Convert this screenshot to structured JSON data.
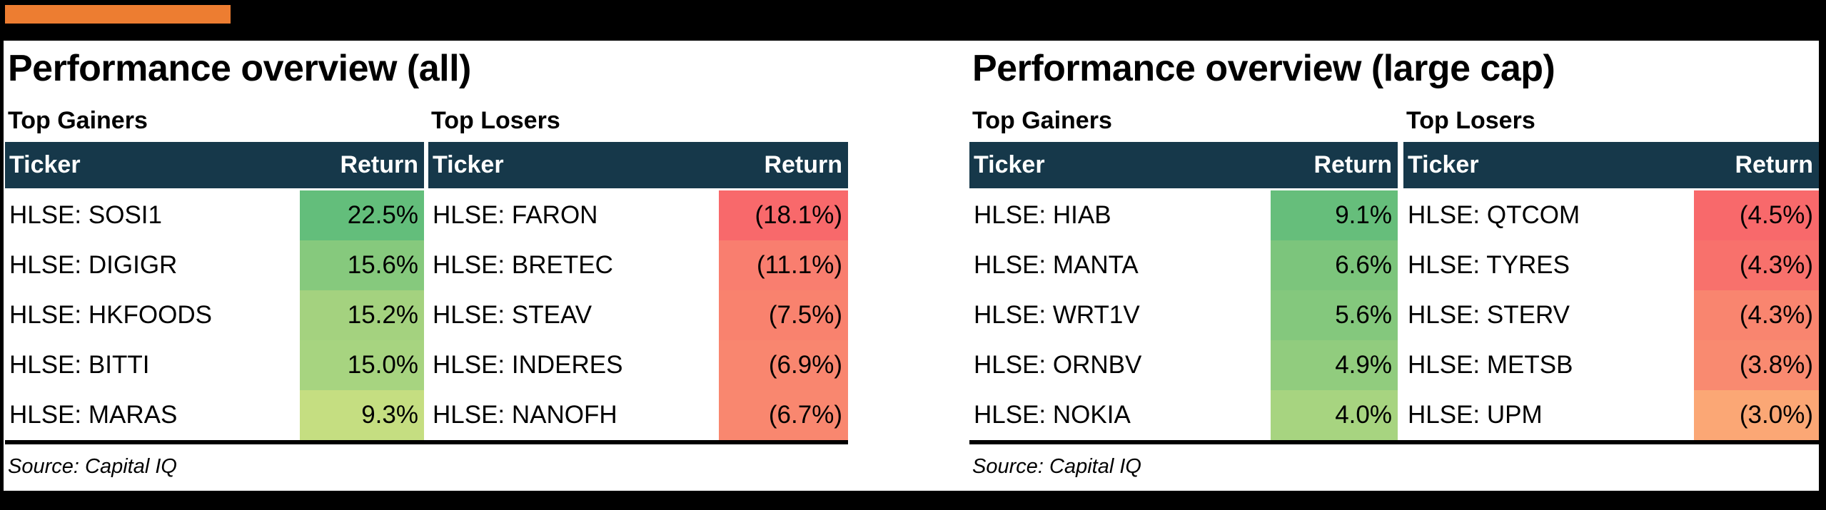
{
  "page": {
    "background": "#000000",
    "accent_bar_color": "#ED7D31",
    "header_bg": "#16384A",
    "header_text_color": "#FFFFFF"
  },
  "panels": [
    {
      "title": "Performance overview (all)",
      "gainers_label": "Top Gainers",
      "losers_label": "Top Losers",
      "ticker_header": "Ticker",
      "return_header": "Return",
      "source": "Source: Capital IQ",
      "gainers": [
        {
          "ticker": "HLSE: SOSI1",
          "return": "22.5%",
          "cell_color": "#63BE7B"
        },
        {
          "ticker": "HLSE: DIGIGR",
          "return": "15.6%",
          "cell_color": "#86C97D"
        },
        {
          "ticker": "HLSE: HKFOODS",
          "return": "15.2%",
          "cell_color": "#A4D27F"
        },
        {
          "ticker": "HLSE: BITTI",
          "return": "15.0%",
          "cell_color": "#A7D480"
        },
        {
          "ticker": "HLSE: MARAS",
          "return": "9.3%",
          "cell_color": "#C5DE81"
        }
      ],
      "losers": [
        {
          "ticker": "HLSE: FARON",
          "return": "(18.1%)",
          "cell_color": "#F8696B"
        },
        {
          "ticker": "HLSE: BRETEC",
          "return": "(11.1%)",
          "cell_color": "#F97E6F"
        },
        {
          "ticker": "HLSE: STEAV",
          "return": "(7.5%)",
          "cell_color": "#F9826E"
        },
        {
          "ticker": "HLSE: INDERES",
          "return": "(6.9%)",
          "cell_color": "#F9866F"
        },
        {
          "ticker": "HLSE: NANOFH",
          "return": "(6.7%)",
          "cell_color": "#F9876F"
        }
      ]
    },
    {
      "title": "Performance overview (large cap)",
      "gainers_label": "Top Gainers",
      "losers_label": "Top Losers",
      "ticker_header": "Ticker",
      "return_header": "Return",
      "source": "Source: Capital IQ",
      "gainers": [
        {
          "ticker": "HLSE: HIAB",
          "return": "9.1%",
          "cell_color": "#66BE7B"
        },
        {
          "ticker": "HLSE: MANTA",
          "return": "6.6%",
          "cell_color": "#7CC57C"
        },
        {
          "ticker": "HLSE: WRT1V",
          "return": "5.6%",
          "cell_color": "#84C87D"
        },
        {
          "ticker": "HLSE: ORNBV",
          "return": "4.9%",
          "cell_color": "#91CC7E"
        },
        {
          "ticker": "HLSE: NOKIA",
          "return": "4.0%",
          "cell_color": "#A7D480"
        }
      ],
      "losers": [
        {
          "ticker": "HLSE: QTCOM",
          "return": "(4.5%)",
          "cell_color": "#F8696B"
        },
        {
          "ticker": "HLSE: TYRES",
          "return": "(4.3%)",
          "cell_color": "#F8716C"
        },
        {
          "ticker": "HLSE: STERV",
          "return": "(4.3%)",
          "cell_color": "#F9856F"
        },
        {
          "ticker": "HLSE: METSB",
          "return": "(3.8%)",
          "cell_color": "#F98A70"
        },
        {
          "ticker": "HLSE: UPM",
          "return": "(3.0%)",
          "cell_color": "#FBA775"
        }
      ]
    }
  ],
  "chart_data": [
    {
      "type": "table",
      "title": "Performance overview (all)",
      "source": "Source: Capital IQ",
      "value_format": "percent, negatives in parentheses, red-yellow-green color scale",
      "sections": [
        {
          "label": "Top Gainers",
          "columns": [
            "Ticker",
            "Return"
          ],
          "rows": [
            [
              "HLSE: SOSI1",
              22.5
            ],
            [
              "HLSE: DIGIGR",
              15.6
            ],
            [
              "HLSE: HKFOODS",
              15.2
            ],
            [
              "HLSE: BITTI",
              15.0
            ],
            [
              "HLSE: MARAS",
              9.3
            ]
          ]
        },
        {
          "label": "Top Losers",
          "columns": [
            "Ticker",
            "Return"
          ],
          "rows": [
            [
              "HLSE: FARON",
              -18.1
            ],
            [
              "HLSE: BRETEC",
              -11.1
            ],
            [
              "HLSE: STEAV",
              -7.5
            ],
            [
              "HLSE: INDERES",
              -6.9
            ],
            [
              "HLSE: NANOFH",
              -6.7
            ]
          ]
        }
      ]
    },
    {
      "type": "table",
      "title": "Performance overview (large cap)",
      "source": "Source: Capital IQ",
      "value_format": "percent, negatives in parentheses, red-yellow-green color scale",
      "sections": [
        {
          "label": "Top Gainers",
          "columns": [
            "Ticker",
            "Return"
          ],
          "rows": [
            [
              "HLSE: HIAB",
              9.1
            ],
            [
              "HLSE: MANTA",
              6.6
            ],
            [
              "HLSE: WRT1V",
              5.6
            ],
            [
              "HLSE: ORNBV",
              4.9
            ],
            [
              "HLSE: NOKIA",
              4.0
            ]
          ]
        },
        {
          "label": "Top Losers",
          "columns": [
            "Ticker",
            "Return"
          ],
          "rows": [
            [
              "HLSE: QTCOM",
              -4.5
            ],
            [
              "HLSE: TYRES",
              -4.3
            ],
            [
              "HLSE: STERV",
              -4.3
            ],
            [
              "HLSE: METSB",
              -3.8
            ],
            [
              "HLSE: UPM",
              -3.0
            ]
          ]
        }
      ]
    }
  ]
}
